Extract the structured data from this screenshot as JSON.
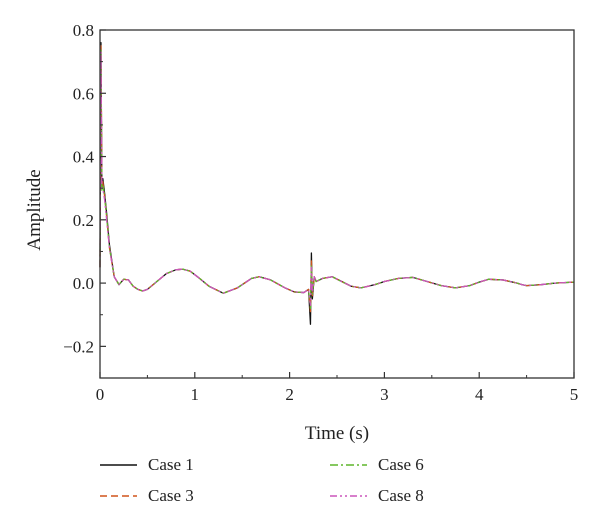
{
  "chart_data": {
    "type": "line",
    "xlabel": "Time (s)",
    "ylabel": "Amplitude",
    "xlim": [
      0,
      5
    ],
    "ylim": [
      -0.3,
      0.8
    ],
    "x_ticks": [
      0,
      1,
      2,
      3,
      4,
      5
    ],
    "x_tick_labels": [
      "0",
      "1",
      "2",
      "3",
      "4",
      "5"
    ],
    "y_ticks": [
      -0.2,
      0.0,
      0.2,
      0.4,
      0.6,
      0.8
    ],
    "y_tick_labels": [
      "−0.2",
      "0.0",
      "0.2",
      "0.4",
      "0.6",
      "0.8"
    ],
    "grid": false,
    "legend_position": "bottom",
    "series_x": [
      0,
      0.01,
      0.02,
      0.03,
      0.05,
      0.07,
      0.1,
      0.15,
      0.2,
      0.25,
      0.3,
      0.35,
      0.4,
      0.45,
      0.5,
      0.6,
      0.7,
      0.8,
      0.87,
      0.95,
      1.05,
      1.15,
      1.3,
      1.45,
      1.6,
      1.68,
      1.8,
      1.95,
      2.05,
      2.15,
      2.2,
      2.22,
      2.23,
      2.24,
      2.26,
      2.28,
      2.35,
      2.45,
      2.55,
      2.65,
      2.75,
      2.8,
      2.9,
      3.0,
      3.15,
      3.3,
      3.45,
      3.6,
      3.75,
      3.9,
      4.0,
      4.1,
      4.25,
      4.4,
      4.45,
      4.5,
      4.65,
      4.8,
      5.0
    ],
    "series": [
      {
        "name": "Case 1",
        "color": "#111111",
        "dash": "solid",
        "values": [
          0.05,
          0.76,
          0.3,
          0.33,
          0.28,
          0.22,
          0.12,
          0.02,
          -0.005,
          0.012,
          0.01,
          -0.01,
          -0.02,
          -0.025,
          -0.02,
          0.005,
          0.03,
          0.042,
          0.044,
          0.038,
          0.015,
          -0.01,
          -0.032,
          -0.015,
          0.015,
          0.02,
          0.01,
          -0.015,
          -0.028,
          -0.03,
          -0.02,
          -0.13,
          0.095,
          -0.05,
          0.02,
          0.005,
          0.015,
          0.02,
          0.005,
          -0.01,
          -0.015,
          -0.012,
          -0.005,
          0.005,
          0.015,
          0.018,
          0.005,
          -0.008,
          -0.015,
          -0.008,
          0.003,
          0.012,
          0.01,
          0.0,
          -0.005,
          -0.008,
          -0.005,
          0.0,
          0.003
        ]
      },
      {
        "name": "Case 3",
        "color": "#d0541a",
        "dash": "dashed",
        "values": [
          0.05,
          0.75,
          0.31,
          0.32,
          0.27,
          0.21,
          0.11,
          0.02,
          -0.004,
          0.012,
          0.01,
          -0.01,
          -0.02,
          -0.025,
          -0.02,
          0.005,
          0.03,
          0.042,
          0.044,
          0.038,
          0.015,
          -0.01,
          -0.032,
          -0.015,
          0.015,
          0.02,
          0.01,
          -0.015,
          -0.028,
          -0.03,
          -0.02,
          -0.09,
          0.07,
          -0.04,
          0.02,
          0.005,
          0.015,
          0.02,
          0.005,
          -0.01,
          -0.015,
          -0.012,
          -0.005,
          0.005,
          0.015,
          0.018,
          0.005,
          -0.008,
          -0.015,
          -0.008,
          0.003,
          0.012,
          0.01,
          0.0,
          -0.005,
          -0.008,
          -0.005,
          0.0,
          0.003
        ]
      },
      {
        "name": "Case 6",
        "color": "#5fb52c",
        "dash": "dashdot",
        "values": [
          0.05,
          0.74,
          0.29,
          0.31,
          0.27,
          0.21,
          0.11,
          0.02,
          -0.004,
          0.012,
          0.01,
          -0.01,
          -0.02,
          -0.025,
          -0.02,
          0.005,
          0.03,
          0.042,
          0.044,
          0.038,
          0.015,
          -0.01,
          -0.032,
          -0.015,
          0.015,
          0.02,
          0.01,
          -0.015,
          -0.028,
          -0.03,
          -0.02,
          -0.08,
          0.06,
          -0.035,
          0.02,
          0.005,
          0.015,
          0.02,
          0.005,
          -0.01,
          -0.015,
          -0.012,
          -0.005,
          0.005,
          0.015,
          0.018,
          0.005,
          -0.008,
          -0.015,
          -0.008,
          0.003,
          0.012,
          0.01,
          0.0,
          -0.005,
          -0.008,
          -0.005,
          0.0,
          0.003
        ]
      },
      {
        "name": "Case 8",
        "color": "#cc55bb",
        "dash": "dashdotdot",
        "values": [
          0.05,
          0.73,
          0.3,
          0.3,
          0.26,
          0.2,
          0.11,
          0.02,
          -0.004,
          0.012,
          0.01,
          -0.01,
          -0.02,
          -0.025,
          -0.02,
          0.005,
          0.03,
          0.042,
          0.044,
          0.038,
          0.015,
          -0.01,
          -0.032,
          -0.015,
          0.015,
          0.02,
          0.01,
          -0.015,
          -0.028,
          -0.03,
          -0.02,
          -0.07,
          0.05,
          -0.03,
          0.02,
          0.005,
          0.015,
          0.02,
          0.005,
          -0.01,
          -0.015,
          -0.012,
          -0.005,
          0.005,
          0.015,
          0.018,
          0.005,
          -0.008,
          -0.015,
          -0.008,
          0.003,
          0.012,
          0.01,
          0.0,
          -0.005,
          -0.008,
          -0.005,
          0.0,
          0.003
        ]
      }
    ]
  }
}
